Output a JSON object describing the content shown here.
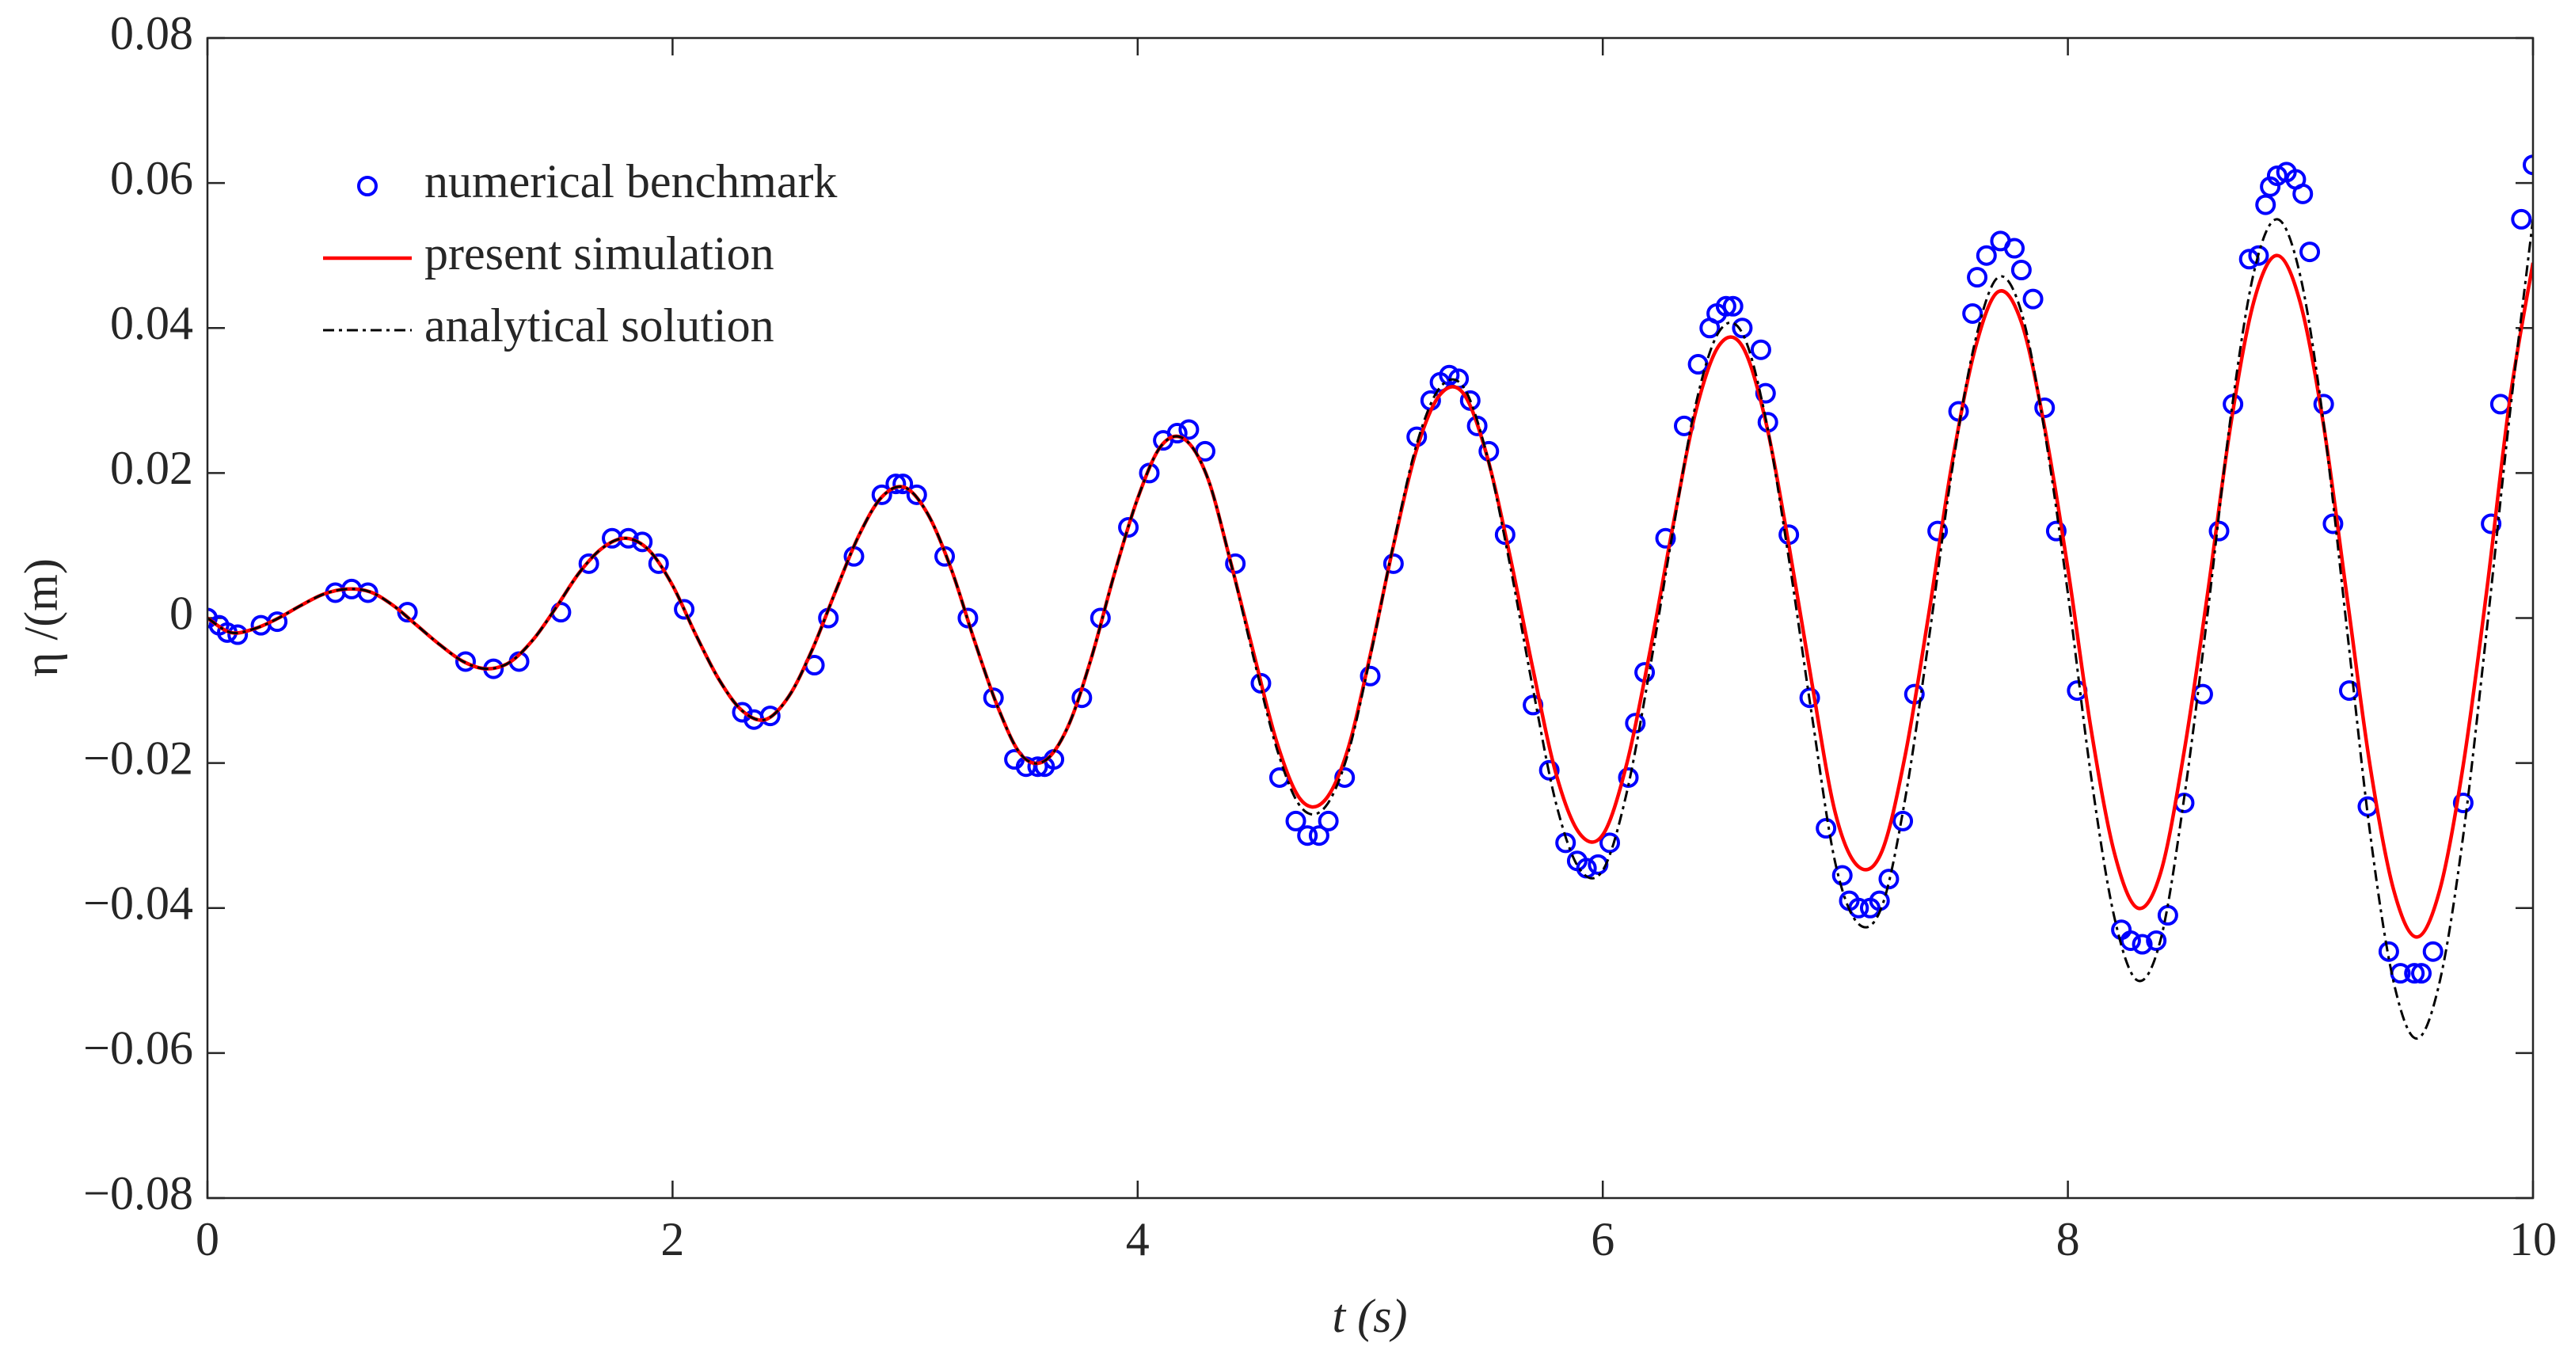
{
  "chart_data": {
    "type": "line",
    "xlabel": "t (s)",
    "ylabel": "η /(m)",
    "xlim": [
      0,
      10
    ],
    "ylim": [
      -0.08,
      0.08
    ],
    "xticks": [
      0,
      2,
      4,
      6,
      8,
      10
    ],
    "yticks": [
      {
        "value": -0.08,
        "label": "−0.08"
      },
      {
        "value": -0.06,
        "label": "−0.06"
      },
      {
        "value": -0.04,
        "label": "−0.04"
      },
      {
        "value": -0.02,
        "label": "−0.02"
      },
      0,
      0.02,
      0.04,
      0.06,
      0.08
    ],
    "legend": "upper left",
    "series": [
      {
        "name": "numerical benchmark",
        "color": "#0000ff",
        "style": "markers",
        "x": [
          0,
          0.05,
          0.085,
          0.13,
          0.23,
          0.3,
          0.55,
          0.62,
          0.69,
          0.86,
          1.11,
          1.23,
          1.34,
          1.52,
          1.64,
          1.74,
          1.81,
          1.87,
          1.94,
          2.05,
          2.3,
          2.35,
          2.42,
          2.61,
          2.67,
          2.78,
          2.9,
          2.96,
          2.99,
          3.05,
          3.17,
          3.27,
          3.38,
          3.47,
          3.52,
          3.57,
          3.6,
          3.64,
          3.76,
          3.84,
          3.96,
          4.05,
          4.11,
          4.17,
          4.22,
          4.29,
          4.42,
          4.53,
          4.61,
          4.68,
          4.73,
          4.78,
          4.82,
          4.89,
          5.0,
          5.1,
          5.2,
          5.26,
          5.3,
          5.34,
          5.38,
          5.43,
          5.46,
          5.51,
          5.58,
          5.7,
          5.77,
          5.84,
          5.89,
          5.93,
          5.98,
          6.03,
          6.11,
          6.14,
          6.18,
          6.27,
          6.35,
          6.41,
          6.46,
          6.49,
          6.53,
          6.56,
          6.6,
          6.68,
          6.7,
          6.71,
          6.8,
          6.89,
          6.96,
          7.03,
          7.06,
          7.1,
          7.15,
          7.19,
          7.23,
          7.29,
          7.34,
          7.44,
          7.53,
          7.59,
          7.61,
          7.65,
          7.71,
          7.77,
          7.8,
          7.85,
          7.9,
          7.95,
          8.04,
          8.23,
          8.27,
          8.32,
          8.38,
          8.43,
          8.5,
          8.58,
          8.65,
          8.71,
          8.78,
          8.82,
          8.85,
          8.87,
          8.9,
          8.94,
          8.98,
          9.01,
          9.04,
          9.1,
          9.14,
          9.21,
          9.29,
          9.38,
          9.43,
          9.49,
          9.52,
          9.57,
          9.7,
          9.82,
          9.86,
          9.95,
          10.0
        ],
        "values": [
          0,
          -0.001,
          -0.002,
          -0.0023,
          -0.001,
          -0.0005,
          0.0035,
          0.004,
          0.0035,
          0.0008,
          -0.006,
          -0.007,
          -0.006,
          0.0008,
          0.0075,
          0.011,
          0.011,
          0.0105,
          0.0075,
          0.0012,
          -0.013,
          -0.014,
          -0.0135,
          -0.0065,
          0,
          0.0085,
          0.017,
          0.0185,
          0.0185,
          0.017,
          0.0085,
          0,
          -0.011,
          -0.0195,
          -0.0205,
          -0.0205,
          -0.0205,
          -0.0195,
          -0.011,
          0,
          0.0125,
          0.02,
          0.0245,
          0.0255,
          0.026,
          0.023,
          0.0075,
          -0.009,
          -0.022,
          -0.028,
          -0.03,
          -0.03,
          -0.028,
          -0.022,
          -0.008,
          0.0075,
          0.025,
          0.03,
          0.0325,
          0.0335,
          0.033,
          0.03,
          0.0265,
          0.023,
          0.0115,
          -0.012,
          -0.021,
          -0.031,
          -0.0335,
          -0.0345,
          -0.034,
          -0.031,
          -0.022,
          -0.0145,
          -0.0075,
          0.011,
          0.0265,
          0.035,
          0.04,
          0.042,
          0.043,
          0.043,
          0.04,
          0.037,
          0.031,
          0.027,
          0.0115,
          -0.011,
          -0.029,
          -0.0355,
          -0.039,
          -0.04,
          -0.04,
          -0.039,
          -0.036,
          -0.028,
          -0.0105,
          0.012,
          0.0285,
          0.042,
          0.047,
          0.05,
          0.052,
          0.051,
          0.048,
          0.044,
          0.029,
          0.012,
          -0.01,
          -0.043,
          -0.0445,
          -0.045,
          -0.0445,
          -0.041,
          -0.0255,
          -0.0105,
          0.012,
          0.0295,
          0.0495,
          0.05,
          0.057,
          0.0595,
          0.061,
          0.0615,
          0.0605,
          0.0585,
          0.0505,
          0.0295,
          0.013,
          -0.01,
          -0.026,
          -0.046,
          -0.049,
          -0.049,
          -0.049,
          -0.046,
          -0.0255,
          0.013,
          0.0295,
          0.055,
          0.0625
        ]
      },
      {
        "name": "present simulation",
        "color": "#ff0000",
        "style": "solid",
        "x": [
          0,
          0.1,
          0.2,
          0.3,
          0.4,
          0.5,
          0.6,
          0.7,
          0.8,
          0.9,
          1,
          1.1,
          1.2,
          1.3,
          1.4,
          1.5,
          1.6,
          1.7,
          1.8,
          1.9,
          2,
          2.1,
          2.2,
          2.3,
          2.4,
          2.5,
          2.6,
          2.7,
          2.8,
          2.9,
          3,
          3.1,
          3.2,
          3.3,
          3.4,
          3.5,
          3.6,
          3.7,
          3.8,
          3.9,
          4,
          4.1,
          4.2,
          4.3,
          4.4,
          4.5,
          4.6,
          4.7,
          4.8,
          4.9,
          5,
          5.1,
          5.2,
          5.3,
          5.4,
          5.5,
          5.6,
          5.7,
          5.8,
          5.9,
          6,
          6.1,
          6.2,
          6.3,
          6.4,
          6.5,
          6.6,
          6.7,
          6.8,
          6.9,
          7,
          7.1,
          7.2,
          7.3,
          7.4,
          7.5,
          7.6,
          7.7,
          7.8,
          7.9,
          8,
          8.1,
          8.2,
          8.3,
          8.4,
          8.5,
          8.6,
          8.7,
          8.8,
          8.9,
          9,
          9.1,
          9.2,
          9.3,
          9.4,
          9.5,
          9.6,
          9.7,
          9.8,
          9.9,
          10
        ],
        "values": [
          0,
          -0.002,
          -0.0015,
          -0.0001,
          0.0017,
          0.0033,
          0.004,
          0.0036,
          0.0017,
          -0.001,
          -0.0037,
          -0.006,
          -0.007,
          -0.0061,
          -0.003,
          0.0015,
          0.0063,
          0.0097,
          0.011,
          0.0093,
          0.0045,
          -0.0023,
          -0.0085,
          -0.0128,
          -0.014,
          -0.0108,
          -0.0044,
          0.0036,
          0.0113,
          0.0167,
          0.018,
          0.0142,
          0.0066,
          -0.0033,
          -0.0124,
          -0.0189,
          -0.0197,
          -0.015,
          -0.0056,
          0.0061,
          0.0165,
          0.0237,
          0.0247,
          0.0194,
          0.0077,
          -0.005,
          -0.0173,
          -0.025,
          -0.0253,
          -0.0185,
          -0.0051,
          0.01,
          0.0233,
          0.0308,
          0.031,
          0.0226,
          0.0087,
          -0.0071,
          -0.0216,
          -0.0297,
          -0.0299,
          -0.0205,
          -0.0051,
          0.0124,
          0.0285,
          0.0376,
          0.0375,
          0.0272,
          0.0101,
          -0.0091,
          -0.0269,
          -0.0343,
          -0.0322,
          -0.019,
          0.0002,
          0.021,
          0.037,
          0.045,
          0.0408,
          0.0263,
          0.0068,
          -0.0154,
          -0.0324,
          -0.04,
          -0.035,
          -0.0184,
          0.0032,
          0.0266,
          0.0437,
          0.05,
          0.0434,
          0.0265,
          0.003,
          -0.0205,
          -0.0374,
          -0.044,
          -0.0374,
          -0.0203,
          0.0035,
          0.03,
          0.049
        ]
      },
      {
        "name": "analytical solution",
        "color": "#000000",
        "style": "dashdot",
        "x": [
          0,
          0.1,
          0.2,
          0.3,
          0.4,
          0.5,
          0.6,
          0.7,
          0.8,
          0.9,
          1,
          1.1,
          1.2,
          1.3,
          1.4,
          1.5,
          1.6,
          1.7,
          1.8,
          1.9,
          2,
          2.1,
          2.2,
          2.3,
          2.4,
          2.5,
          2.6,
          2.7,
          2.8,
          2.9,
          3,
          3.1,
          3.2,
          3.3,
          3.4,
          3.5,
          3.6,
          3.7,
          3.8,
          3.9,
          4,
          4.1,
          4.2,
          4.3,
          4.4,
          4.5,
          4.6,
          4.7,
          4.8,
          4.9,
          5,
          5.1,
          5.2,
          5.3,
          5.4,
          5.5,
          5.6,
          5.7,
          5.8,
          5.9,
          6,
          6.1,
          6.2,
          6.3,
          6.4,
          6.5,
          6.6,
          6.7,
          6.8,
          6.9,
          7,
          7.1,
          7.2,
          7.3,
          7.4,
          7.5,
          7.6,
          7.7,
          7.8,
          7.9,
          8,
          8.1,
          8.2,
          8.3,
          8.4,
          8.5,
          8.6,
          8.7,
          8.8,
          8.9,
          9,
          9.1,
          9.2,
          9.3,
          9.4,
          9.5,
          9.6,
          9.7,
          9.8,
          9.9,
          10
        ],
        "values": [
          0,
          -0.002,
          -0.0015,
          -0.0001,
          0.0017,
          0.0033,
          0.004,
          0.0036,
          0.0017,
          -0.001,
          -0.0037,
          -0.006,
          -0.007,
          -0.0061,
          -0.003,
          0.0015,
          0.0063,
          0.0097,
          0.011,
          0.0093,
          0.0045,
          -0.0023,
          -0.0085,
          -0.0128,
          -0.014,
          -0.0108,
          -0.0044,
          0.0036,
          0.0113,
          0.0167,
          0.018,
          0.0142,
          0.0066,
          -0.0033,
          -0.0124,
          -0.0189,
          -0.0197,
          -0.015,
          -0.0056,
          0.0061,
          0.0165,
          0.0237,
          0.0247,
          0.0194,
          0.0077,
          -0.0057,
          -0.0182,
          -0.026,
          -0.0263,
          -0.0192,
          -0.0054,
          0.0102,
          0.024,
          0.0318,
          0.0319,
          0.0227,
          0.0075,
          -0.0098,
          -0.0257,
          -0.0346,
          -0.0348,
          -0.0245,
          -0.0075,
          0.0117,
          0.0295,
          0.0395,
          0.0393,
          0.0276,
          0.0082,
          -0.0136,
          -0.0338,
          -0.0422,
          -0.0398,
          -0.025,
          -0.0034,
          0.02,
          0.038,
          0.047,
          0.0422,
          0.0257,
          0.0034,
          -0.0219,
          -0.0413,
          -0.05,
          -0.0442,
          -0.0248,
          0.0004,
          0.0277,
          0.0477,
          0.055,
          0.0471,
          0.0268,
          -0.0015,
          -0.0298,
          -0.0501,
          -0.058,
          -0.05,
          -0.03,
          -0.002,
          0.028,
          0.055
        ]
      }
    ]
  }
}
